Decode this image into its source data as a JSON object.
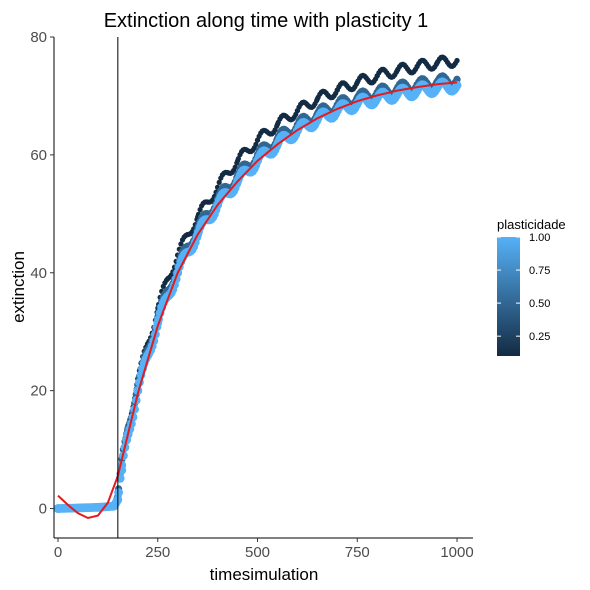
{
  "chart_data": {
    "type": "scatter",
    "title": "Extinction along time with plasticity 1",
    "xlabel": "timesimulation",
    "ylabel": "extinction",
    "xlim": [
      -10,
      1040
    ],
    "ylim": [
      -5,
      80
    ],
    "x_ticks": [
      0,
      250,
      500,
      750,
      1000
    ],
    "y_ticks": [
      0,
      20,
      40,
      60,
      80
    ],
    "vline_x": 150,
    "grid": false,
    "legend": {
      "title": "plasticidade",
      "placement": "right",
      "ticks": [
        0.25,
        0.5,
        0.75,
        1.0
      ],
      "tick_labels": [
        "0.25",
        "0.50",
        "0.75",
        "1.00"
      ],
      "range": [
        0.1,
        1.0
      ],
      "low_color": "#132b43",
      "high_color": "#56b1f7"
    },
    "series": [
      {
        "plasticidade": 0.1,
        "x": [
          0,
          100,
          140,
          150,
          160,
          175,
          200,
          225,
          250,
          275,
          300,
          325,
          350,
          375,
          400,
          425,
          450,
          500,
          550,
          600,
          650,
          700,
          750,
          800,
          850,
          900,
          950,
          1000
        ],
        "y": [
          0,
          0.2,
          0.4,
          2,
          8,
          14,
          22,
          28,
          34,
          39,
          43,
          46.5,
          49.5,
          52,
          54.5,
          57,
          59,
          62.5,
          65.2,
          67.5,
          69.5,
          71,
          72.3,
          73.4,
          74.3,
          75,
          75.6,
          76
        ]
      },
      {
        "plasticidade": 0.5,
        "x": [
          0,
          100,
          140,
          150,
          160,
          175,
          200,
          225,
          250,
          275,
          300,
          325,
          350,
          375,
          400,
          425,
          450,
          500,
          550,
          600,
          650,
          700,
          750,
          800,
          850,
          900,
          950,
          1000
        ],
        "y": [
          0,
          0.2,
          0.4,
          2,
          7.5,
          13.5,
          21,
          27,
          32.5,
          37,
          41,
          44.5,
          47.5,
          50,
          52.5,
          54.5,
          56.5,
          60,
          62.8,
          65.1,
          67,
          68.5,
          69.7,
          70.6,
          71.3,
          71.9,
          72.4,
          72.8
        ]
      },
      {
        "plasticidade": 1.0,
        "x": [
          0,
          100,
          140,
          150,
          160,
          175,
          200,
          225,
          250,
          275,
          300,
          325,
          350,
          375,
          400,
          425,
          450,
          500,
          550,
          600,
          650,
          700,
          750,
          800,
          850,
          900,
          950,
          1000
        ],
        "y": [
          0,
          0.2,
          0.4,
          1.5,
          6.5,
          12.5,
          20,
          26,
          31.5,
          36,
          40,
          43.5,
          46.5,
          49,
          51.5,
          53.5,
          55.5,
          59,
          61.8,
          64.1,
          66,
          67.5,
          68.7,
          69.6,
          70.3,
          70.9,
          71.4,
          71.8
        ]
      }
    ],
    "fit_line": {
      "color": "#e41a1c",
      "x": [
        0,
        25,
        50,
        75,
        100,
        125,
        150,
        175,
        200,
        250,
        300,
        350,
        400,
        450,
        500,
        550,
        600,
        650,
        700,
        750,
        800,
        850,
        900,
        950,
        1000
      ],
      "y": [
        2.2,
        0.6,
        -0.8,
        -1.6,
        -1.2,
        1.0,
        5.5,
        12.5,
        19.5,
        31,
        40,
        46.5,
        51.5,
        55.5,
        59,
        61.8,
        64.2,
        66.2,
        67.8,
        69.1,
        70.1,
        70.9,
        71.5,
        72,
        72.3
      ]
    }
  }
}
